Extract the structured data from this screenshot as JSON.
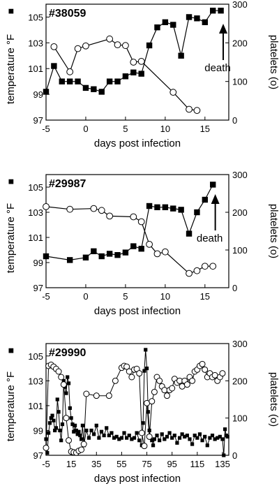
{
  "chart_data": [
    {
      "type": "line",
      "title": "#38059",
      "xlabel": "days post infection",
      "ylabel_left": "temperature °F",
      "ylabel_left_marker": "■",
      "ylabel_right": "platelets (o)",
      "xlim": [
        -5,
        18
      ],
      "xticks": [
        -5,
        0,
        5,
        10,
        15
      ],
      "ylim_left": [
        97,
        106
      ],
      "yticks_left": [
        97,
        99,
        101,
        103,
        105
      ],
      "ylim_right": [
        0,
        300
      ],
      "yticks_right": [
        0,
        100,
        200,
        300
      ],
      "series": [
        {
          "axis": "left",
          "marker": "filled-square",
          "x": [
            -5,
            -4,
            -3,
            -2,
            -1,
            0,
            1,
            2,
            3,
            4,
            5,
            6,
            7,
            8,
            9,
            10,
            11,
            12,
            13,
            14,
            15,
            16,
            17
          ],
          "y": [
            99.2,
            101.2,
            100.0,
            100.0,
            100.0,
            99.5,
            99.4,
            99.2,
            100.0,
            100.0,
            100.4,
            100.7,
            100.6,
            102.8,
            104.2,
            104.6,
            104.4,
            102.0,
            105.0,
            104.9,
            104.6,
            105.5,
            105.5
          ]
        },
        {
          "axis": "right",
          "marker": "open-circle",
          "x": [
            -4,
            -2,
            -1,
            0,
            3,
            4,
            5,
            6,
            7,
            11,
            13,
            14
          ],
          "y": [
            190,
            125,
            185,
            192,
            210,
            195,
            193,
            150,
            152,
            72,
            28,
            25
          ]
        }
      ],
      "annotations": [
        {
          "text": "death",
          "x": 17.3
        }
      ]
    },
    {
      "type": "line",
      "title": "#29987",
      "xlabel": "days post infection",
      "ylabel_left": "temperature °F",
      "ylabel_left_marker": "■",
      "ylabel_right": "platelets (o)",
      "xlim": [
        -5,
        18
      ],
      "xticks": [
        -5,
        0,
        5,
        10,
        15
      ],
      "ylim_left": [
        97,
        106
      ],
      "yticks_left": [
        97,
        99,
        101,
        103,
        105
      ],
      "ylim_right": [
        0,
        300
      ],
      "yticks_right": [
        0,
        100,
        200,
        300
      ],
      "series": [
        {
          "axis": "left",
          "marker": "filled-square",
          "x": [
            -5,
            -2,
            0,
            1,
            2,
            3,
            4,
            5,
            6,
            7,
            8,
            9,
            10,
            11,
            12,
            13,
            14,
            15,
            16
          ],
          "y": [
            99.5,
            99.2,
            99.4,
            99.9,
            99.5,
            99.7,
            99.6,
            99.8,
            100.3,
            100.1,
            103.5,
            103.4,
            103.4,
            103.3,
            103.2,
            101.3,
            103.0,
            104.0,
            105.2
          ]
        },
        {
          "axis": "right",
          "marker": "open-circle",
          "x": [
            -5,
            -2,
            1,
            2,
            3,
            6,
            7,
            8,
            9,
            10,
            13,
            14,
            15,
            16
          ],
          "y": [
            215,
            208,
            210,
            205,
            190,
            188,
            175,
            115,
            90,
            95,
            38,
            45,
            57,
            57
          ]
        }
      ],
      "annotations": [
        {
          "text": "death",
          "x": 16.3
        }
      ]
    },
    {
      "type": "line",
      "title": "#29990",
      "xlabel": "days post infection",
      "ylabel_left": "temperature °F",
      "ylabel_left_marker": "■",
      "ylabel_right": "platelets (o)",
      "xlim": [
        -5,
        140
      ],
      "xticks": [
        -5,
        15,
        35,
        55,
        75,
        95,
        115,
        135
      ],
      "ylim_left": [
        97,
        106
      ],
      "yticks_left": [
        97,
        99,
        101,
        103,
        105
      ],
      "ylim_right": [
        0,
        300
      ],
      "yticks_right": [
        0,
        100,
        200,
        300
      ],
      "series": [
        {
          "axis": "left",
          "marker": "filled-square",
          "x": [
            -5,
            -4,
            -3,
            -2,
            -1,
            0,
            1,
            2,
            3,
            4,
            5,
            6,
            7,
            8,
            9,
            10,
            11,
            12,
            13,
            14,
            15,
            16,
            17,
            18,
            19,
            20,
            21,
            22,
            23,
            24,
            25,
            27,
            29,
            31,
            33,
            35,
            37,
            39,
            41,
            43,
            45,
            47,
            49,
            51,
            53,
            55,
            57,
            59,
            61,
            63,
            65,
            67,
            69,
            71,
            72,
            73,
            74,
            75,
            76,
            77,
            78,
            79,
            80,
            81,
            83,
            85,
            87,
            89,
            91,
            93,
            95,
            97,
            99,
            101,
            103,
            105,
            107,
            109,
            111,
            113,
            115,
            117,
            119,
            121,
            123,
            125,
            127,
            129,
            131,
            133,
            135,
            136,
            137,
            138,
            139
          ],
          "y": [
            98.3,
            97.2,
            98.8,
            99.6,
            100.0,
            100.2,
            99.8,
            99.0,
            99.2,
            101.5,
            100.5,
            99.0,
            98.2,
            99.5,
            103.0,
            102.5,
            102.0,
            103.3,
            102.8,
            100.8,
            100.0,
            99.5,
            98.9,
            99.4,
            99.0,
            98.7,
            98.9,
            98.6,
            98.3,
            99.4,
            97.8,
            99.0,
            98.4,
            99.0,
            98.7,
            99.4,
            98.4,
            98.9,
            98.6,
            99.2,
            98.6,
            98.8,
            98.4,
            98.5,
            98.3,
            98.4,
            98.8,
            98.4,
            98.6,
            98.3,
            98.4,
            98.8,
            98.2,
            97.8,
            99.6,
            103.8,
            105.5,
            104.0,
            100.5,
            99.0,
            98.4,
            98.2,
            97.8,
            98.3,
            98.6,
            98.2,
            98.7,
            98.3,
            98.5,
            98.8,
            98.4,
            98.6,
            98.0,
            98.4,
            98.7,
            98.5,
            98.6,
            98.3,
            97.9,
            98.6,
            98.4,
            98.7,
            98.2,
            98.5,
            97.8,
            98.4,
            98.6,
            98.3,
            98.4,
            98.5,
            98.3,
            97.0,
            99.1,
            98.6,
            98.5
          ]
        },
        {
          "axis": "right",
          "marker": "open-circle",
          "x": [
            -5,
            -3,
            -1,
            1,
            3,
            5,
            7,
            9,
            11,
            13,
            15,
            17,
            19,
            21,
            23,
            25,
            27,
            35,
            45,
            50,
            55,
            57,
            59,
            61,
            63,
            65,
            67,
            69,
            71,
            73,
            75,
            77,
            79,
            81,
            83,
            85,
            87,
            89,
            91,
            93,
            95,
            97,
            99,
            101,
            103,
            105,
            107,
            109,
            111,
            113,
            115,
            117,
            119,
            121,
            123,
            125,
            127,
            129,
            131,
            133,
            135
          ],
          "y": [
            20,
            240,
            243,
            238,
            232,
            225,
            210,
            190,
            100,
            40,
            10,
            8,
            7,
            12,
            15,
            30,
            165,
            160,
            160,
            200,
            235,
            240,
            238,
            225,
            210,
            230,
            232,
            220,
            60,
            25,
            140,
            50,
            145,
            170,
            210,
            200,
            185,
            175,
            160,
            175,
            180,
            205,
            195,
            200,
            185,
            200,
            190,
            210,
            200,
            225,
            230,
            240,
            245,
            230,
            210,
            220,
            210,
            215,
            200,
            210,
            220
          ]
        }
      ]
    }
  ]
}
